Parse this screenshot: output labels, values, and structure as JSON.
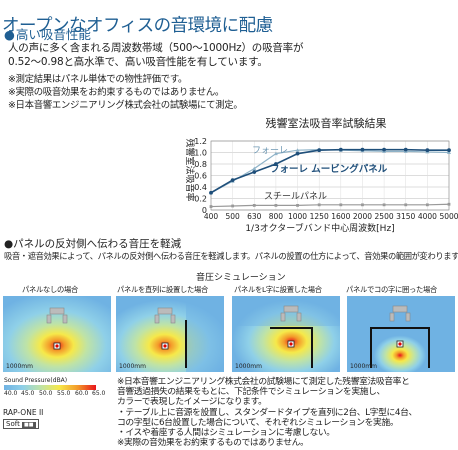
{
  "title": "オープンなオフィスの音環境に配慮",
  "section1": {
    "heading": "高い吸音性能",
    "body": [
      "人の声に多く含まれる周波数帯域（500～1000Hz）の吸音率が",
      "0.52～0.98と高水準で、高い吸音性能を有しています。"
    ],
    "notes": [
      "※測定結果はパネル単体での物性評価です。",
      "※実際の吸音効果をお約束するものではありません。",
      "※日本音響エンジニアリング株式会社の試験場にて測定。"
    ]
  },
  "chart_data": {
    "type": "line",
    "title": "残響室法吸音率試験結果",
    "xlabel": "1/3オクターブバンド中心周波数[Hz]",
    "ylabel": "残響室法吸音率",
    "categories": [
      "400",
      "500",
      "630",
      "800",
      "1000",
      "1250",
      "1600",
      "2000",
      "2500",
      "3150",
      "4000",
      "5000"
    ],
    "ylim": [
      0,
      1.2
    ],
    "yticks": [
      "0",
      "0.2",
      "0.4",
      "0.6",
      "0.8",
      "1.0",
      "1.2"
    ],
    "series": [
      {
        "name": "フォーレ",
        "color": "#8fb3c8",
        "values": [
          0.3,
          0.5,
          0.72,
          0.98,
          1.04,
          1.05,
          1.04,
          1.03,
          1.02,
          1.02,
          1.01,
          1.0
        ]
      },
      {
        "name": "フォーレ ムービングパネル",
        "color": "#1f4f7a",
        "values": [
          0.3,
          0.52,
          0.66,
          0.8,
          0.98,
          1.04,
          1.05,
          1.05,
          1.05,
          1.05,
          1.04,
          1.04
        ]
      },
      {
        "name": "スチールパネル",
        "color": "#999999",
        "values": [
          0.06,
          0.07,
          0.08,
          0.08,
          0.08,
          0.09,
          0.09,
          0.09,
          0.09,
          0.09,
          0.09,
          0.1
        ]
      }
    ]
  },
  "section2": {
    "heading": "パネルの反対側へ伝わる音圧を軽減",
    "body": "吸音・遮音効果によって、パネルの反対側へ伝わる音圧を軽減します。パネルの設置の仕方によって、音効果の範囲が変わります。",
    "sim_title": "音圧シミュレーション",
    "panels": [
      {
        "label": "パネルなしの場合",
        "mm": "1000mm"
      },
      {
        "label": "パネルを直列に設置した場合",
        "mm": "1000mm"
      },
      {
        "label": "パネルをL字に設置した場合",
        "mm": "1000mm"
      },
      {
        "label": "パネルでコの字に囲った場合",
        "mm": "1000mm"
      }
    ],
    "legend_title": "Sound Pressure(dBA)",
    "legend_ticks": [
      "40.0",
      "45.0",
      "50.0",
      "55.0",
      "60.0",
      "65.0"
    ],
    "brand": "RAP-ONE II",
    "soft": "Soft",
    "bottom_notes": [
      "※日本音響エンジニアリング株式会社の試験場にて測定した残響室法吸音率と",
      "音響透過損失の結果をもとに、下記条件でシミュレーションを実施し、",
      "カラーで表現したイメージになります。",
      "・テーブル上に音源を設置し、スタンダードタイプを直列に2台、L字型に4台、",
      "コの字型に6台設置した場合について、それぞれシミュレーションを実施。",
      "・イスや着座する人間はシミュレーションに考慮しない。",
      "※実際の音効果をお約束するものではありません。"
    ]
  }
}
